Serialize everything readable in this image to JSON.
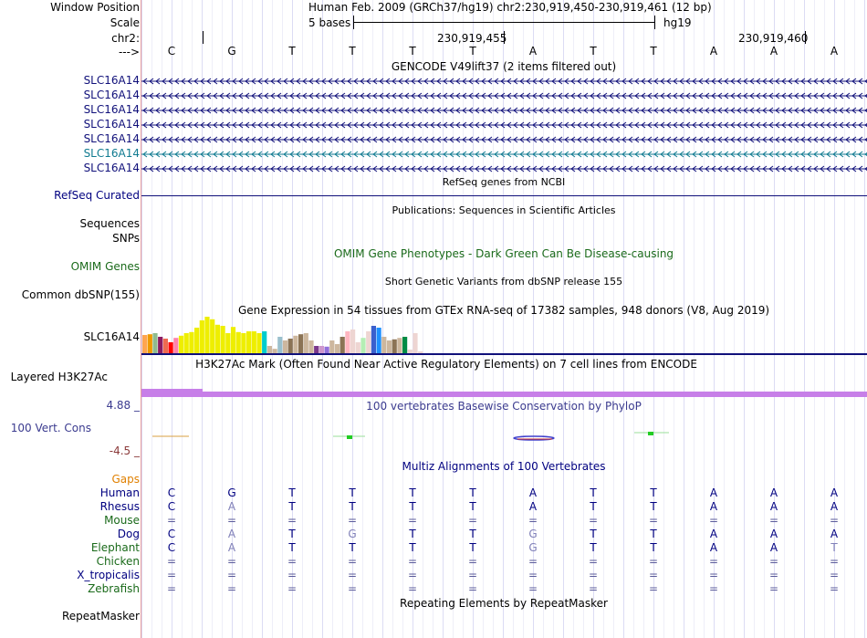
{
  "colors": {
    "navy": "#000080",
    "gene_blue": "#10107a",
    "gene_teal": "#0f7a90",
    "omim_green": "#1a6a1a",
    "gaps_orange": "#e08000",
    "red_line": "#e8a0a0",
    "h3k27_purple": "#c77fe8",
    "conservation_label": "#3b3b8f"
  },
  "header": {
    "window_position_label": "Window Position",
    "window_position_value": "Human Feb. 2009 (GRCh37/hg19)   chr2:230,919,450-230,919,461 (12 bp)",
    "scale_label": "Scale",
    "scale_bases": "5 bases",
    "scale_assembly": "hg19",
    "chrom_label": "chr2:",
    "coord1": "230,919,455",
    "coord2": "230,919,460",
    "strand_label": "--->"
  },
  "bases": [
    "C",
    "G",
    "T",
    "T",
    "T",
    "T",
    "A",
    "T",
    "T",
    "A",
    "A",
    "A"
  ],
  "gencode": {
    "title": "GENCODE V49lift37 (2 items filtered out)",
    "items": [
      {
        "label": "SLC16A14",
        "color": "#10107a"
      },
      {
        "label": "SLC16A14",
        "color": "#10107a"
      },
      {
        "label": "SLC16A14",
        "color": "#10107a"
      },
      {
        "label": "SLC16A14",
        "color": "#10107a"
      },
      {
        "label": "SLC16A14",
        "color": "#10107a"
      },
      {
        "label": "SLC16A14",
        "color": "#0f7a90"
      },
      {
        "label": "SLC16A14",
        "color": "#10107a"
      }
    ]
  },
  "refseq": {
    "title": "RefSeq genes from NCBI",
    "label": "RefSeq Curated"
  },
  "publications": {
    "title": "Publications: Sequences in Scientific Articles",
    "label1": "Sequences",
    "label2": "SNPs"
  },
  "omim": {
    "title": "OMIM Gene Phenotypes - Dark Green Can Be Disease-causing",
    "label": "OMIM Genes"
  },
  "dbsnp": {
    "title": "Short Genetic Variants from dbSNP release 155",
    "label": "Common dbSNP(155)"
  },
  "gtex": {
    "title": "Gene Expression in 54 tissues from GTEx RNA-seq of 17382 samples, 948 donors (V8, Aug 2019)",
    "label": "SLC16A14",
    "bars": [
      {
        "v": 0.5,
        "c": "#ffa54f"
      },
      {
        "v": 0.52,
        "c": "#ee9a00"
      },
      {
        "v": 0.55,
        "c": "#8fbc8f"
      },
      {
        "v": 0.45,
        "c": "#8b1c62"
      },
      {
        "v": 0.4,
        "c": "#ee6a50"
      },
      {
        "v": 0.3,
        "c": "#ff0000"
      },
      {
        "v": 0.42,
        "c": "#ff82ab"
      },
      {
        "v": 0.48,
        "c": "#eeee00"
      },
      {
        "v": 0.55,
        "c": "#eeee00"
      },
      {
        "v": 0.58,
        "c": "#eeee00"
      },
      {
        "v": 0.7,
        "c": "#eeee00"
      },
      {
        "v": 0.9,
        "c": "#eeee00"
      },
      {
        "v": 1.0,
        "c": "#eeee00"
      },
      {
        "v": 0.93,
        "c": "#eeee00"
      },
      {
        "v": 0.78,
        "c": "#eeee00"
      },
      {
        "v": 0.75,
        "c": "#eeee00"
      },
      {
        "v": 0.55,
        "c": "#eeee00"
      },
      {
        "v": 0.72,
        "c": "#eeee00"
      },
      {
        "v": 0.58,
        "c": "#eeee00"
      },
      {
        "v": 0.55,
        "c": "#eeee00"
      },
      {
        "v": 0.6,
        "c": "#eeee00"
      },
      {
        "v": 0.6,
        "c": "#eeee00"
      },
      {
        "v": 0.55,
        "c": "#eeee00"
      },
      {
        "v": 0.6,
        "c": "#00cdcd"
      },
      {
        "v": 0.2,
        "c": "#cdb79e"
      },
      {
        "v": 0.12,
        "c": "#cdb79e"
      },
      {
        "v": 0.45,
        "c": "#9ac0cd"
      },
      {
        "v": 0.35,
        "c": "#cdb79e"
      },
      {
        "v": 0.4,
        "c": "#8b7355"
      },
      {
        "v": 0.48,
        "c": "#cdb79e"
      },
      {
        "v": 0.52,
        "c": "#8b7355"
      },
      {
        "v": 0.55,
        "c": "#cdb79e"
      },
      {
        "v": 0.35,
        "c": "#cdb79e"
      },
      {
        "v": 0.2,
        "c": "#7a378b"
      },
      {
        "v": 0.2,
        "c": "#cd96cd"
      },
      {
        "v": 0.18,
        "c": "#9370db"
      },
      {
        "v": 0.35,
        "c": "#cdb79e"
      },
      {
        "v": 0.25,
        "c": "#cdb79e"
      },
      {
        "v": 0.45,
        "c": "#8b7355"
      },
      {
        "v": 0.6,
        "c": "#ffb6c1"
      },
      {
        "v": 0.65,
        "c": "#eed5d2"
      },
      {
        "v": 0.3,
        "c": "#eed5d2"
      },
      {
        "v": 0.42,
        "c": "#b4eeb4"
      },
      {
        "v": 0.6,
        "c": "#eed5d2"
      },
      {
        "v": 0.75,
        "c": "#3a5fcd"
      },
      {
        "v": 0.7,
        "c": "#1e90ff"
      },
      {
        "v": 0.45,
        "c": "#cdb79e"
      },
      {
        "v": 0.35,
        "c": "#cdb79e"
      },
      {
        "v": 0.38,
        "c": "#8b7355"
      },
      {
        "v": 0.42,
        "c": "#cdb79e"
      },
      {
        "v": 0.45,
        "c": "#008b45"
      },
      {
        "v": 0.1,
        "c": "#eed5d2"
      },
      {
        "v": 0.55,
        "c": "#eed5d2"
      },
      {
        "v": 0.05,
        "c": "#eed5d2"
      }
    ]
  },
  "h3k27": {
    "title": "H3K27Ac Mark (Often Found Near Active Regulatory Elements) on 7 cell lines from ENCODE",
    "label": "Layered H3K27Ac"
  },
  "phylop": {
    "title": "100 vertebrates Basewise Conservation by PhyloP",
    "label": "100 Vert. Cons",
    "max": "4.88 _",
    "min": "-4.5 _"
  },
  "multiz": {
    "title": "Multiz Alignments of 100 Vertebrates",
    "gaps_label": "Gaps",
    "species": [
      {
        "name": "Human",
        "color": "#000080",
        "seq": [
          "C",
          "G",
          "T",
          "T",
          "T",
          "T",
          "A",
          "T",
          "T",
          "A",
          "A",
          "A"
        ]
      },
      {
        "name": "Rhesus",
        "color": "#000080",
        "seq": [
          "C",
          "A",
          "T",
          "T",
          "T",
          "T",
          "A",
          "T",
          "T",
          "A",
          "A",
          "A"
        ]
      },
      {
        "name": "Mouse",
        "color": "#1a6a1a",
        "seq": [
          "=",
          "=",
          "=",
          "=",
          "=",
          "=",
          "=",
          "=",
          "=",
          "=",
          "=",
          "="
        ]
      },
      {
        "name": "Dog",
        "color": "#000080",
        "seq": [
          "C",
          "A",
          "T",
          "G",
          "T",
          "T",
          "G",
          "T",
          "T",
          "A",
          "A",
          "A"
        ]
      },
      {
        "name": "Elephant",
        "color": "#1a6a1a",
        "seq": [
          "C",
          "A",
          "T",
          "T",
          "T",
          "T",
          "G",
          "T",
          "T",
          "A",
          "A",
          "T"
        ]
      },
      {
        "name": "Chicken",
        "color": "#1a6a1a",
        "seq": [
          "=",
          "=",
          "=",
          "=",
          "=",
          "=",
          "=",
          "=",
          "=",
          "=",
          "=",
          "="
        ]
      },
      {
        "name": "X_tropicalis",
        "color": "#000080",
        "seq": [
          "=",
          "=",
          "=",
          "=",
          "=",
          "=",
          "=",
          "=",
          "=",
          "=",
          "=",
          "="
        ]
      },
      {
        "name": "Zebrafish",
        "color": "#1a6a1a",
        "seq": [
          "=",
          "=",
          "=",
          "=",
          "=",
          "=",
          "=",
          "=",
          "=",
          "=",
          "=",
          "="
        ]
      }
    ]
  },
  "repeatmasker": {
    "title": "Repeating Elements by RepeatMasker",
    "label": "RepeatMasker"
  }
}
